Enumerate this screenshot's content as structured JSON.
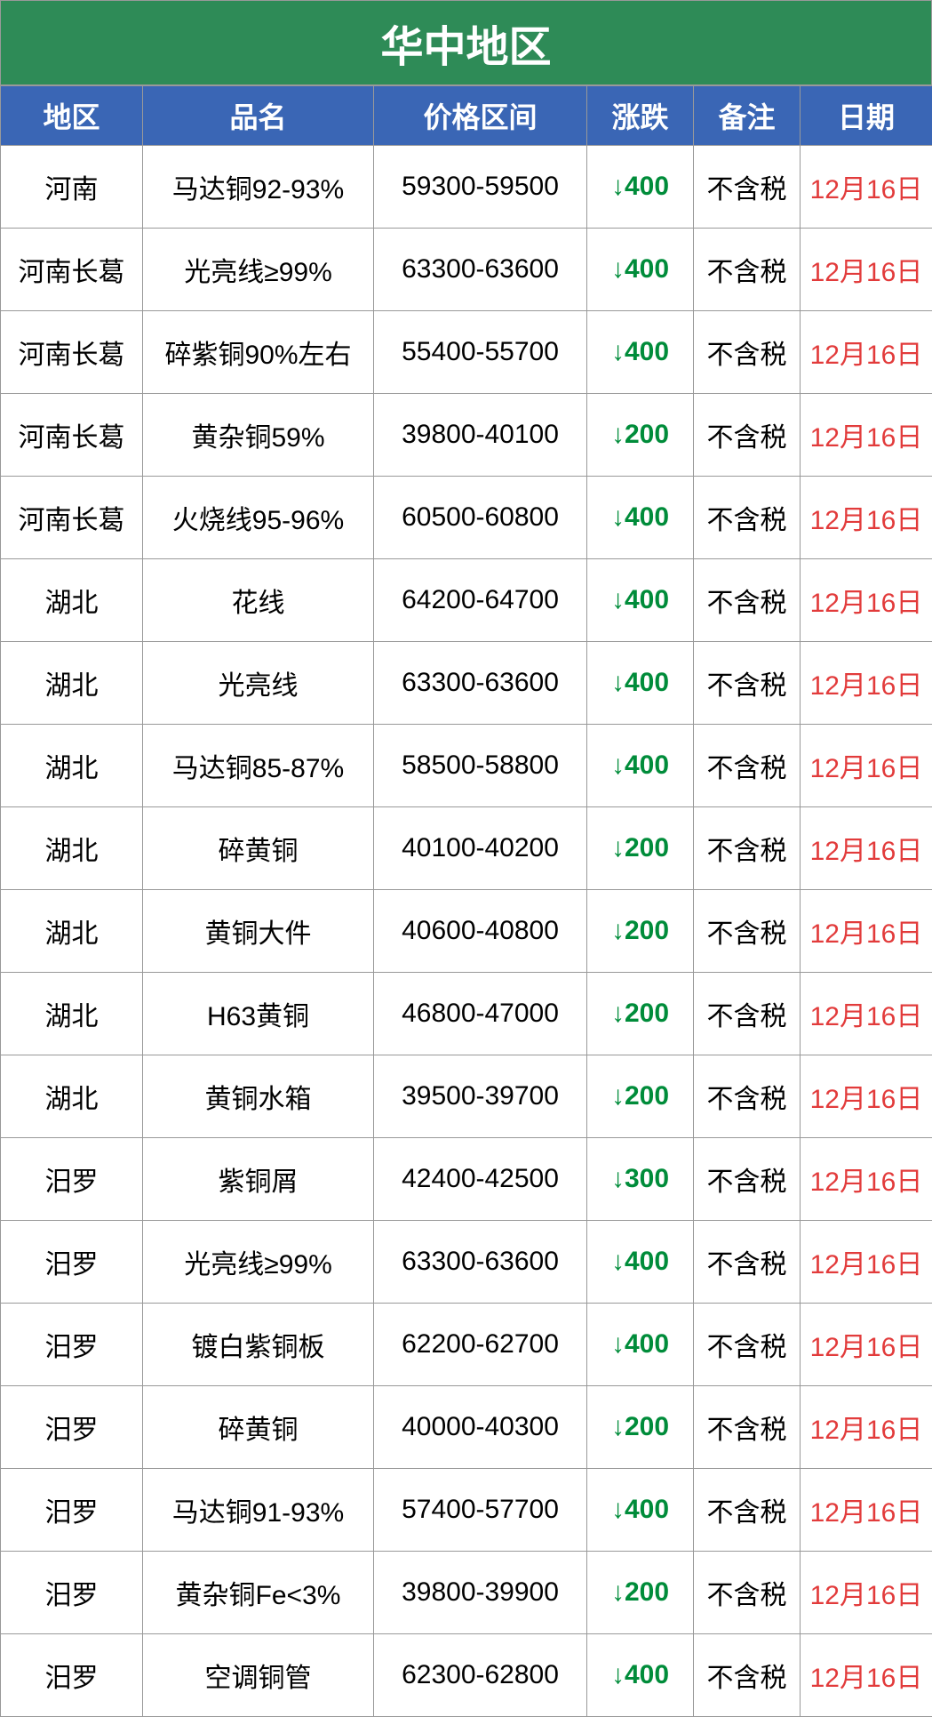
{
  "title": "华中地区",
  "colors": {
    "title_bg": "#2e8b57",
    "title_fg": "#ffffff",
    "header_bg": "#3a66b5",
    "header_fg": "#ffffff",
    "border": "#999999",
    "cell_fg": "#000000",
    "down_fg": "#008c3a",
    "date_fg": "#e23b3b"
  },
  "columns": [
    "地区",
    "品名",
    "价格区间",
    "涨跌",
    "备注",
    "日期"
  ],
  "rows": [
    {
      "region": "河南",
      "name": "马达铜92-93%",
      "price": "59300-59500",
      "change": "↓400",
      "change_color": "#008c3a",
      "note": "不含税",
      "date": "12月16日"
    },
    {
      "region": "河南长葛",
      "name": "光亮线≥99%",
      "price": "63300-63600",
      "change": "↓400",
      "change_color": "#008c3a",
      "note": "不含税",
      "date": "12月16日"
    },
    {
      "region": "河南长葛",
      "name": "碎紫铜90%左右",
      "price": "55400-55700",
      "change": "↓400",
      "change_color": "#008c3a",
      "note": "不含税",
      "date": "12月16日"
    },
    {
      "region": "河南长葛",
      "name": "黄杂铜59%",
      "price": "39800-40100",
      "change": "↓200",
      "change_color": "#008c3a",
      "note": "不含税",
      "date": "12月16日"
    },
    {
      "region": "河南长葛",
      "name": "火烧线95-96%",
      "price": "60500-60800",
      "change": "↓400",
      "change_color": "#008c3a",
      "note": "不含税",
      "date": "12月16日"
    },
    {
      "region": "湖北",
      "name": "花线",
      "price": "64200-64700",
      "change": "↓400",
      "change_color": "#008c3a",
      "note": "不含税",
      "date": "12月16日"
    },
    {
      "region": "湖北",
      "name": "光亮线",
      "price": "63300-63600",
      "change": "↓400",
      "change_color": "#008c3a",
      "note": "不含税",
      "date": "12月16日"
    },
    {
      "region": "湖北",
      "name": "马达铜85-87%",
      "price": "58500-58800",
      "change": "↓400",
      "change_color": "#008c3a",
      "note": "不含税",
      "date": "12月16日"
    },
    {
      "region": "湖北",
      "name": "碎黄铜",
      "price": "40100-40200",
      "change": "↓200",
      "change_color": "#008c3a",
      "note": "不含税",
      "date": "12月16日"
    },
    {
      "region": "湖北",
      "name": "黄铜大件",
      "price": "40600-40800",
      "change": "↓200",
      "change_color": "#008c3a",
      "note": "不含税",
      "date": "12月16日"
    },
    {
      "region": "湖北",
      "name": "H63黄铜",
      "price": "46800-47000",
      "change": "↓200",
      "change_color": "#008c3a",
      "note": "不含税",
      "date": "12月16日"
    },
    {
      "region": "湖北",
      "name": "黄铜水箱",
      "price": "39500-39700",
      "change": "↓200",
      "change_color": "#008c3a",
      "note": "不含税",
      "date": "12月16日"
    },
    {
      "region": "汨罗",
      "name": "紫铜屑",
      "price": "42400-42500",
      "change": "↓300",
      "change_color": "#008c3a",
      "note": "不含税",
      "date": "12月16日"
    },
    {
      "region": "汨罗",
      "name": "光亮线≥99%",
      "price": "63300-63600",
      "change": "↓400",
      "change_color": "#008c3a",
      "note": "不含税",
      "date": "12月16日"
    },
    {
      "region": "汨罗",
      "name": "镀白紫铜板",
      "price": "62200-62700",
      "change": "↓400",
      "change_color": "#008c3a",
      "note": "不含税",
      "date": "12月16日"
    },
    {
      "region": "汨罗",
      "name": "碎黄铜",
      "price": "40000-40300",
      "change": "↓200",
      "change_color": "#008c3a",
      "note": "不含税",
      "date": "12月16日"
    },
    {
      "region": "汨罗",
      "name": "马达铜91-93%",
      "price": "57400-57700",
      "change": "↓400",
      "change_color": "#008c3a",
      "note": "不含税",
      "date": "12月16日"
    },
    {
      "region": "汨罗",
      "name": "黄杂铜Fe<3%",
      "price": "39800-39900",
      "change": "↓200",
      "change_color": "#008c3a",
      "note": "不含税",
      "date": "12月16日"
    },
    {
      "region": "汨罗",
      "name": "空调铜管",
      "price": "62300-62800",
      "change": "↓400",
      "change_color": "#008c3a",
      "note": "不含税",
      "date": "12月16日"
    }
  ]
}
